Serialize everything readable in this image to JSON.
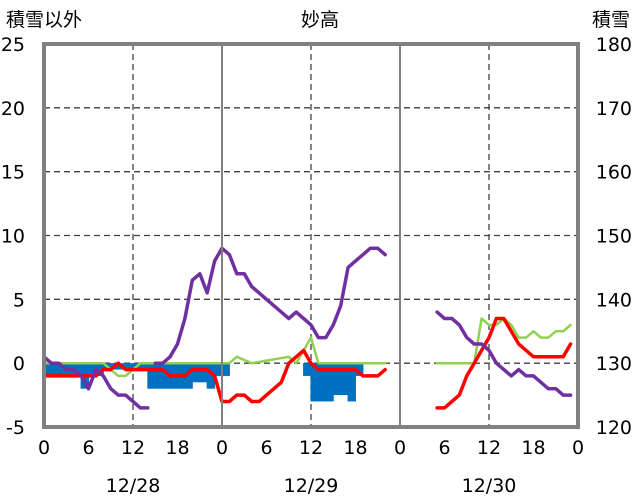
{
  "chart_data": {
    "type": "line",
    "title": "妙高",
    "left_axis_label": "積雪以外",
    "right_axis_label": "積雪",
    "left_axis": {
      "min": -5,
      "max": 25,
      "ticks": [
        "-5",
        "0",
        "5",
        "10",
        "15",
        "20",
        "25"
      ]
    },
    "right_axis": {
      "min": 120,
      "max": 180,
      "ticks": [
        "120",
        "130",
        "140",
        "150",
        "160",
        "170",
        "180"
      ]
    },
    "x_axis": {
      "unit": "hour",
      "range": [
        0,
        72
      ],
      "tick_labels": [
        "0",
        "6",
        "12",
        "18",
        "0",
        "6",
        "12",
        "18",
        "0",
        "6",
        "12",
        "18",
        "0"
      ],
      "date_labels": [
        "12/28",
        "12/29",
        "12/30"
      ]
    },
    "grid": "dashed",
    "colors": {
      "purple": "#7030a0",
      "red": "#ff0000",
      "green": "#92d050",
      "blue": "#0070c0"
    },
    "series": [
      {
        "axis": "right",
        "color": "#7030a0",
        "segments": [
          [
            [
              0,
              131
            ],
            [
              1,
              130
            ],
            [
              2,
              130
            ],
            [
              3,
              129
            ],
            [
              4,
              129
            ],
            [
              5,
              128
            ],
            [
              6,
              126
            ],
            [
              7,
              129
            ],
            [
              8,
              128
            ],
            [
              9,
              126
            ],
            [
              10,
              125
            ],
            [
              11,
              125
            ],
            [
              12,
              124
            ],
            [
              13,
              123
            ],
            [
              14,
              123
            ]
          ],
          [
            [
              15,
              130
            ],
            [
              16,
              130
            ],
            [
              17,
              131
            ],
            [
              18,
              133
            ],
            [
              19,
              137
            ],
            [
              20,
              143
            ],
            [
              21,
              144
            ],
            [
              22,
              141
            ],
            [
              23,
              146
            ],
            [
              24,
              148
            ],
            [
              25,
              147
            ],
            [
              26,
              144
            ],
            [
              27,
              144
            ],
            [
              28,
              142
            ],
            [
              29,
              141
            ],
            [
              30,
              140
            ],
            [
              31,
              139
            ],
            [
              32,
              138
            ],
            [
              33,
              137
            ],
            [
              34,
              138
            ],
            [
              35,
              137
            ],
            [
              36,
              136
            ],
            [
              37,
              134
            ],
            [
              38,
              134
            ],
            [
              39,
              136
            ],
            [
              40,
              139
            ],
            [
              41,
              145
            ],
            [
              42,
              146
            ],
            [
              43,
              147
            ],
            [
              44,
              148
            ],
            [
              45,
              148
            ],
            [
              46,
              147
            ]
          ],
          [
            [
              53,
              138
            ],
            [
              54,
              137
            ],
            [
              55,
              137
            ],
            [
              56,
              136
            ],
            [
              57,
              134
            ],
            [
              58,
              133
            ],
            [
              59,
              133
            ],
            [
              60,
              132
            ],
            [
              61,
              130
            ],
            [
              62,
              129
            ],
            [
              63,
              128
            ],
            [
              64,
              129
            ],
            [
              65,
              128
            ],
            [
              66,
              128
            ],
            [
              67,
              127
            ],
            [
              68,
              126
            ],
            [
              69,
              126
            ],
            [
              70,
              125
            ],
            [
              71,
              125
            ]
          ]
        ]
      },
      {
        "axis": "left",
        "color": "#ff0000",
        "segments": [
          [
            [
              0,
              -1
            ],
            [
              1,
              -1
            ],
            [
              2,
              -1
            ],
            [
              3,
              -1
            ],
            [
              4,
              -1
            ],
            [
              5,
              -1
            ],
            [
              6,
              -1
            ],
            [
              7,
              -1
            ],
            [
              8,
              -0.5
            ],
            [
              9,
              -0.5
            ],
            [
              10,
              0
            ],
            [
              11,
              -0.5
            ],
            [
              12,
              -0.5
            ],
            [
              13,
              -0.5
            ],
            [
              14,
              -0.5
            ],
            [
              15,
              -0.5
            ],
            [
              16,
              -0.5
            ],
            [
              17,
              -1
            ],
            [
              18,
              -1
            ],
            [
              19,
              -1
            ],
            [
              20,
              -0.5
            ],
            [
              21,
              -0.5
            ],
            [
              22,
              -0.5
            ],
            [
              23,
              -1
            ],
            [
              24,
              -3
            ],
            [
              25,
              -3
            ],
            [
              26,
              -2.5
            ],
            [
              27,
              -2.5
            ],
            [
              28,
              -3
            ],
            [
              29,
              -3
            ],
            [
              30,
              -2.5
            ],
            [
              31,
              -2
            ],
            [
              32,
              -1.5
            ],
            [
              33,
              0
            ],
            [
              34,
              0.5
            ],
            [
              35,
              1
            ],
            [
              36,
              0
            ],
            [
              37,
              -0.5
            ],
            [
              38,
              -0.5
            ],
            [
              39,
              -0.5
            ],
            [
              40,
              -0.5
            ],
            [
              41,
              -0.5
            ],
            [
              42,
              -0.5
            ],
            [
              43,
              -1
            ],
            [
              44,
              -1
            ],
            [
              45,
              -1
            ],
            [
              46,
              -0.5
            ]
          ],
          [
            [
              53,
              -3.5
            ],
            [
              54,
              -3.5
            ],
            [
              55,
              -3
            ],
            [
              56,
              -2.5
            ],
            [
              57,
              -1
            ],
            [
              58,
              0
            ],
            [
              59,
              1
            ],
            [
              60,
              2
            ],
            [
              61,
              3.5
            ],
            [
              62,
              3.5
            ],
            [
              63,
              2.5
            ],
            [
              64,
              1.5
            ],
            [
              65,
              1
            ],
            [
              66,
              0.5
            ],
            [
              67,
              0.5
            ],
            [
              68,
              0.5
            ],
            [
              69,
              0.5
            ],
            [
              70,
              0.5
            ],
            [
              71,
              1.5
            ]
          ]
        ]
      },
      {
        "axis": "left",
        "color": "#92d050",
        "segments": [
          [
            [
              0,
              0
            ],
            [
              6,
              0
            ],
            [
              8,
              0
            ],
            [
              9,
              -0.5
            ],
            [
              10,
              -1
            ],
            [
              11,
              -1
            ],
            [
              12,
              -0.5
            ],
            [
              13,
              0
            ],
            [
              24,
              0
            ],
            [
              25,
              0
            ],
            [
              26,
              0.5
            ],
            [
              28,
              0
            ],
            [
              33,
              0.5
            ],
            [
              34,
              0
            ],
            [
              35,
              1
            ],
            [
              36,
              2
            ],
            [
              37,
              0
            ],
            [
              46,
              0
            ]
          ],
          [
            [
              53,
              0
            ],
            [
              58,
              0
            ],
            [
              59,
              3.5
            ],
            [
              60,
              3
            ],
            [
              61,
              3
            ],
            [
              62,
              3.5
            ],
            [
              63,
              3
            ],
            [
              64,
              2
            ],
            [
              65,
              2
            ],
            [
              66,
              2.5
            ],
            [
              67,
              2
            ],
            [
              68,
              2
            ],
            [
              69,
              2.5
            ],
            [
              70,
              2.5
            ],
            [
              71,
              3
            ]
          ]
        ]
      }
    ],
    "bars": {
      "axis": "left",
      "color": "#0070c0",
      "points": [
        [
          0,
          -1
        ],
        [
          1,
          -1
        ],
        [
          2,
          -1
        ],
        [
          3,
          -1
        ],
        [
          4,
          -1
        ],
        [
          5,
          -2
        ],
        [
          6,
          -1
        ],
        [
          7,
          -1
        ],
        [
          8,
          -0.5
        ],
        [
          9,
          -0.5
        ],
        [
          10,
          -0.5
        ],
        [
          11,
          -0.5
        ],
        [
          12,
          -0.5
        ],
        [
          13,
          -0.5
        ],
        [
          14,
          -2
        ],
        [
          15,
          -2
        ],
        [
          16,
          -2
        ],
        [
          17,
          -2
        ],
        [
          18,
          -2
        ],
        [
          19,
          -2
        ],
        [
          20,
          -1.5
        ],
        [
          21,
          -1.5
        ],
        [
          22,
          -2
        ],
        [
          23,
          -1
        ],
        [
          24,
          -1
        ],
        [
          35,
          -1
        ],
        [
          36,
          -3
        ],
        [
          37,
          -3
        ],
        [
          38,
          -3
        ],
        [
          39,
          -2.5
        ],
        [
          40,
          -2.5
        ],
        [
          41,
          -3
        ],
        [
          42,
          -1
        ]
      ]
    }
  }
}
